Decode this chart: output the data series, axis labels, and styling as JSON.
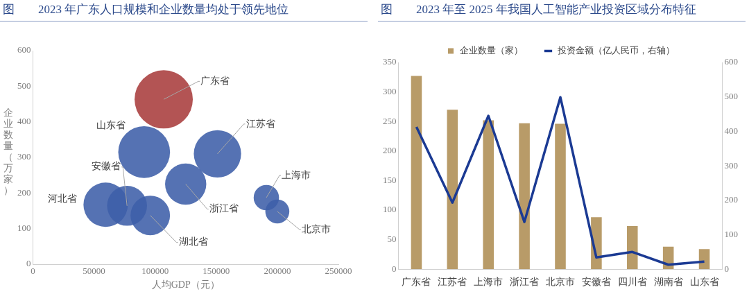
{
  "chart_data": [
    {
      "type": "bubble",
      "title": "图　　2023 年广东人口规模和企业数量均处于领先地位",
      "xlabel": "人均GDP（元）",
      "ylabel": "企业数量（万家）",
      "xlim": [
        0,
        250000
      ],
      "xticks": [
        0,
        50000,
        100000,
        150000,
        200000,
        250000
      ],
      "ylim": [
        0,
        600
      ],
      "yticks": [
        0,
        100,
        200,
        300,
        400,
        500,
        600
      ],
      "grid": false,
      "legend": false,
      "series": [
        {
          "name": "广东省",
          "color": "#a83c3c",
          "x": [
            107000
          ],
          "values": [
            463
          ],
          "sizes": [
            1
          ]
        },
        {
          "name": "山东省",
          "color": "#3d5ea9",
          "x": [
            91000
          ],
          "values": [
            315
          ],
          "sizes": [
            0.79
          ]
        },
        {
          "name": "江苏省",
          "color": "#3d5ea9",
          "x": [
            151000
          ],
          "values": [
            310
          ],
          "sizes": [
            0.66
          ]
        },
        {
          "name": "浙江省",
          "color": "#3d5ea9",
          "x": [
            125000
          ],
          "values": [
            225
          ],
          "sizes": [
            0.5
          ]
        },
        {
          "name": "河北省",
          "color": "#3d5ea9",
          "x": [
            59500
          ],
          "values": [
            167
          ],
          "sizes": [
            0.58
          ]
        },
        {
          "name": "安徽省",
          "color": "#3d5ea9",
          "x": [
            77000
          ],
          "values": [
            164
          ],
          "sizes": [
            0.47
          ]
        },
        {
          "name": "湖北省",
          "color": "#3d5ea9",
          "x": [
            96000
          ],
          "values": [
            137
          ],
          "sizes": [
            0.46
          ]
        },
        {
          "name": "上海市",
          "color": "#3d5ea9",
          "x": [
            191000
          ],
          "values": [
            187
          ],
          "sizes": [
            0.19
          ]
        },
        {
          "name": "北京市",
          "color": "#3d5ea9",
          "x": [
            200000
          ],
          "values": [
            148
          ],
          "sizes": [
            0.17
          ]
        }
      ]
    },
    {
      "type": "bar",
      "title": "图　　2023 年至 2025 年我国人工智能产业投资区域分布特征",
      "categories": [
        "广东省",
        "江苏省",
        "上海市",
        "浙江省",
        "北京市",
        "安徽省",
        "四川省",
        "湖南省",
        "山东省"
      ],
      "ylim": [
        0,
        350
      ],
      "yticks": [
        0,
        50,
        100,
        150,
        200,
        250,
        300,
        350
      ],
      "y2lim": [
        0,
        600
      ],
      "y2ticks": [
        0,
        100,
        200,
        300,
        400,
        500,
        600
      ],
      "grid": false,
      "legend": "top",
      "series": [
        {
          "name": "企业数量（家）",
          "type": "bar",
          "color": "#b89b68",
          "values": [
            327,
            270,
            252,
            247,
            246,
            88,
            73,
            38,
            34
          ]
        },
        {
          "name": "投资金额（亿人民币，右轴）",
          "type": "line",
          "axis": "y2",
          "color": "#1b3a93",
          "values": [
            413,
            193,
            445,
            137,
            499,
            34,
            50,
            13,
            22
          ]
        }
      ]
    }
  ]
}
